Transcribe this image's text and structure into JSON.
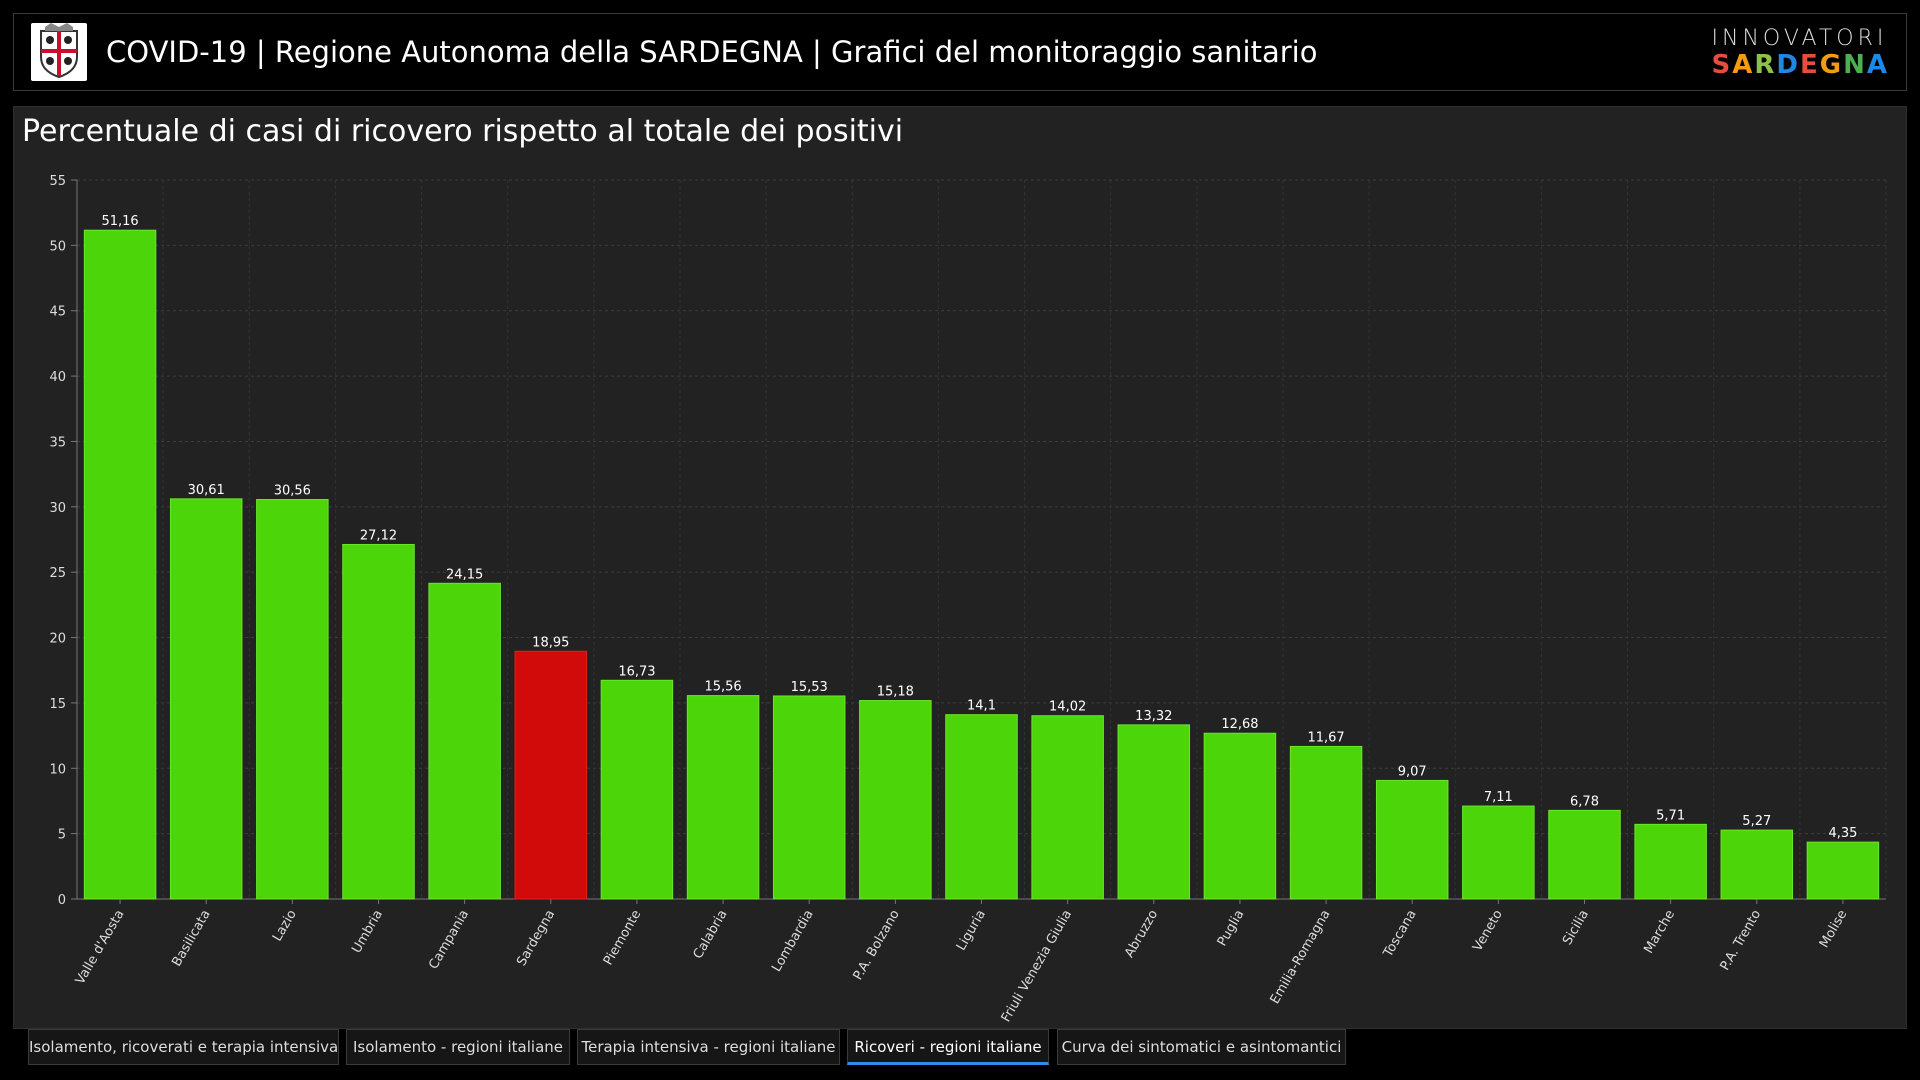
{
  "header": {
    "title": "COVID-19 | Regione Autonoma della SARDEGNA | Grafici del monitoraggio sanitario",
    "crest_icon": "sardinia-crest-icon",
    "brand_top": "INNOVATORI",
    "brand_bottom": "SARDEGNA",
    "brand_colors": [
      "#e84c3d",
      "#f39c12",
      "#8bc34a",
      "#1e88e5",
      "#e84c3d",
      "#f39c12",
      "#4caf50",
      "#1e88e5"
    ]
  },
  "panel": {
    "title": "Percentuale di casi di ricovero rispetto al totale dei positivi"
  },
  "chart_data": {
    "type": "bar",
    "title": "Percentuale di casi di ricovero rispetto al totale dei positivi",
    "xlabel": "",
    "ylabel": "",
    "ylim": [
      0,
      55
    ],
    "yticks": [
      0,
      5,
      10,
      15,
      20,
      25,
      30,
      35,
      40,
      45,
      50,
      55
    ],
    "grid": true,
    "categories": [
      "Valle d'Aosta",
      "Basilicata",
      "Lazio",
      "Umbria",
      "Campania",
      "Sardegna",
      "Piemonte",
      "Calabria",
      "Lombardia",
      "P.A. Bolzano",
      "Liguria",
      "Friuli Venezia Giulia",
      "Abruzzo",
      "Puglia",
      "Emilia-Romagna",
      "Toscana",
      "Veneto",
      "Sicilia",
      "Marche",
      "P.A. Trento",
      "Molise"
    ],
    "values": [
      51.16,
      30.61,
      30.56,
      27.12,
      24.15,
      18.95,
      16.73,
      15.56,
      15.53,
      15.18,
      14.1,
      14.02,
      13.32,
      12.68,
      11.67,
      9.07,
      7.11,
      6.78,
      5.71,
      5.27,
      4.35
    ],
    "value_labels": [
      "51,16",
      "30,61",
      "30,56",
      "27,12",
      "24,15",
      "18,95",
      "16,73",
      "15,56",
      "15,53",
      "15,18",
      "14,1",
      "14,02",
      "13,32",
      "12,68",
      "11,67",
      "9,07",
      "7,11",
      "6,78",
      "5,71",
      "5,27",
      "4,35"
    ],
    "bar_color": "#4cd60a",
    "highlight_category": "Sardegna",
    "highlight_color": "#d10a0a"
  },
  "tabs": [
    {
      "label": "Isolamento, ricoverati e terapia intensiva",
      "active": false
    },
    {
      "label": "Isolamento - regioni italiane",
      "active": false
    },
    {
      "label": "Terapia intensiva - regioni italiane",
      "active": false
    },
    {
      "label": "Ricoveri - regioni italiane",
      "active": true
    },
    {
      "label": "Curva dei sintomatici e asintomantici",
      "active": false
    }
  ]
}
